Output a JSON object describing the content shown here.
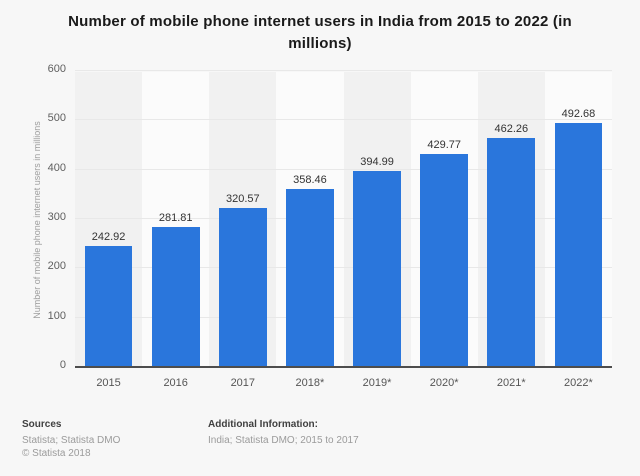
{
  "title": "Number of mobile phone internet users in India from 2015 to 2022 (in millions)",
  "y_axis": {
    "title": "Number of mobile phone internet users in millions",
    "ticks": [
      "600",
      "500",
      "400",
      "300",
      "200",
      "100",
      "0"
    ]
  },
  "chart_data": {
    "type": "bar",
    "categories": [
      "2015",
      "2016",
      "2017",
      "2018*",
      "2019*",
      "2020*",
      "2021*",
      "2022*"
    ],
    "values": [
      242.92,
      281.81,
      320.57,
      358.46,
      394.99,
      429.77,
      462.26,
      492.68
    ],
    "title": "Number of mobile phone internet users in India from 2015 to 2022 (in millions)",
    "xlabel": "",
    "ylabel": "Number of mobile phone internet users in millions",
    "ylim": [
      0,
      600
    ],
    "grid": true,
    "legend": "none",
    "data_labels": [
      "242.92",
      "281.81",
      "320.57",
      "358.46",
      "394.99",
      "429.77",
      "462.26",
      "492.68"
    ]
  },
  "footer": {
    "sources_label": "Sources",
    "sources_line1": "Statista; Statista DMO",
    "sources_line2": "© Statista 2018",
    "additional_label": "Additional Information:",
    "additional_line1": "India; Statista DMO; 2015 to 2017"
  },
  "colors": {
    "bar": "#2a76dc",
    "background": "#f7f7f7",
    "band_dark": "#f1f1f1",
    "band_light": "#fbfbfb",
    "gridline": "#e8e8e8",
    "baseline": "#4d4d4d"
  }
}
